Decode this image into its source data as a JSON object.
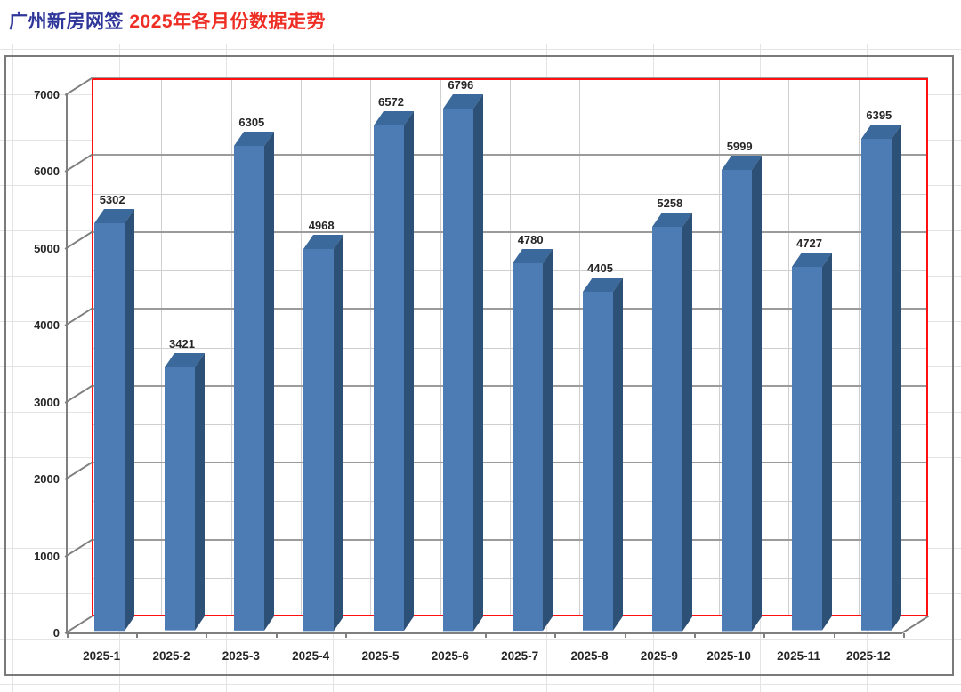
{
  "title": {
    "part1": "广州新房网签",
    "part2": "2025年各月份数据走势",
    "part1_color": "#2f3699",
    "part2_color": "#ee2e24"
  },
  "chart_data": {
    "type": "bar",
    "style": "3d-column",
    "title": "广州新房网签 2025年各月份数据走势",
    "categories": [
      "2025-1",
      "2025-2",
      "2025-3",
      "2025-4",
      "2025-5",
      "2025-6",
      "2025-7",
      "2025-8",
      "2025-9",
      "2025-10",
      "2025-11",
      "2025-12"
    ],
    "values": [
      5302,
      3421,
      6305,
      4968,
      6572,
      6796,
      4780,
      4405,
      5258,
      5999,
      4727,
      6395
    ],
    "data_labels_shown": true,
    "xlabel": "",
    "ylabel": "",
    "ylim": [
      0,
      7000
    ],
    "y_major_step": 1000,
    "y_minor_step": 500,
    "y_tick_labels": [
      "0",
      "1000",
      "2000",
      "3000",
      "4000",
      "5000",
      "6000",
      "7000"
    ],
    "grid": true,
    "legend": false,
    "legend_position": "none"
  },
  "colors": {
    "bar_front": "#4d7cb5",
    "bar_side": "#2d5076",
    "bar_top": "#3c699c",
    "plot_border": "#fe1010",
    "plot_fill": "#ffffff",
    "grid_major": "#9b9b9b",
    "grid_minor": "#cfcfcf",
    "category_line": "#cfcfcf",
    "axis_line": "#7f7f7f",
    "chart_border": "#7a7a7a",
    "label_text": "#262626"
  }
}
